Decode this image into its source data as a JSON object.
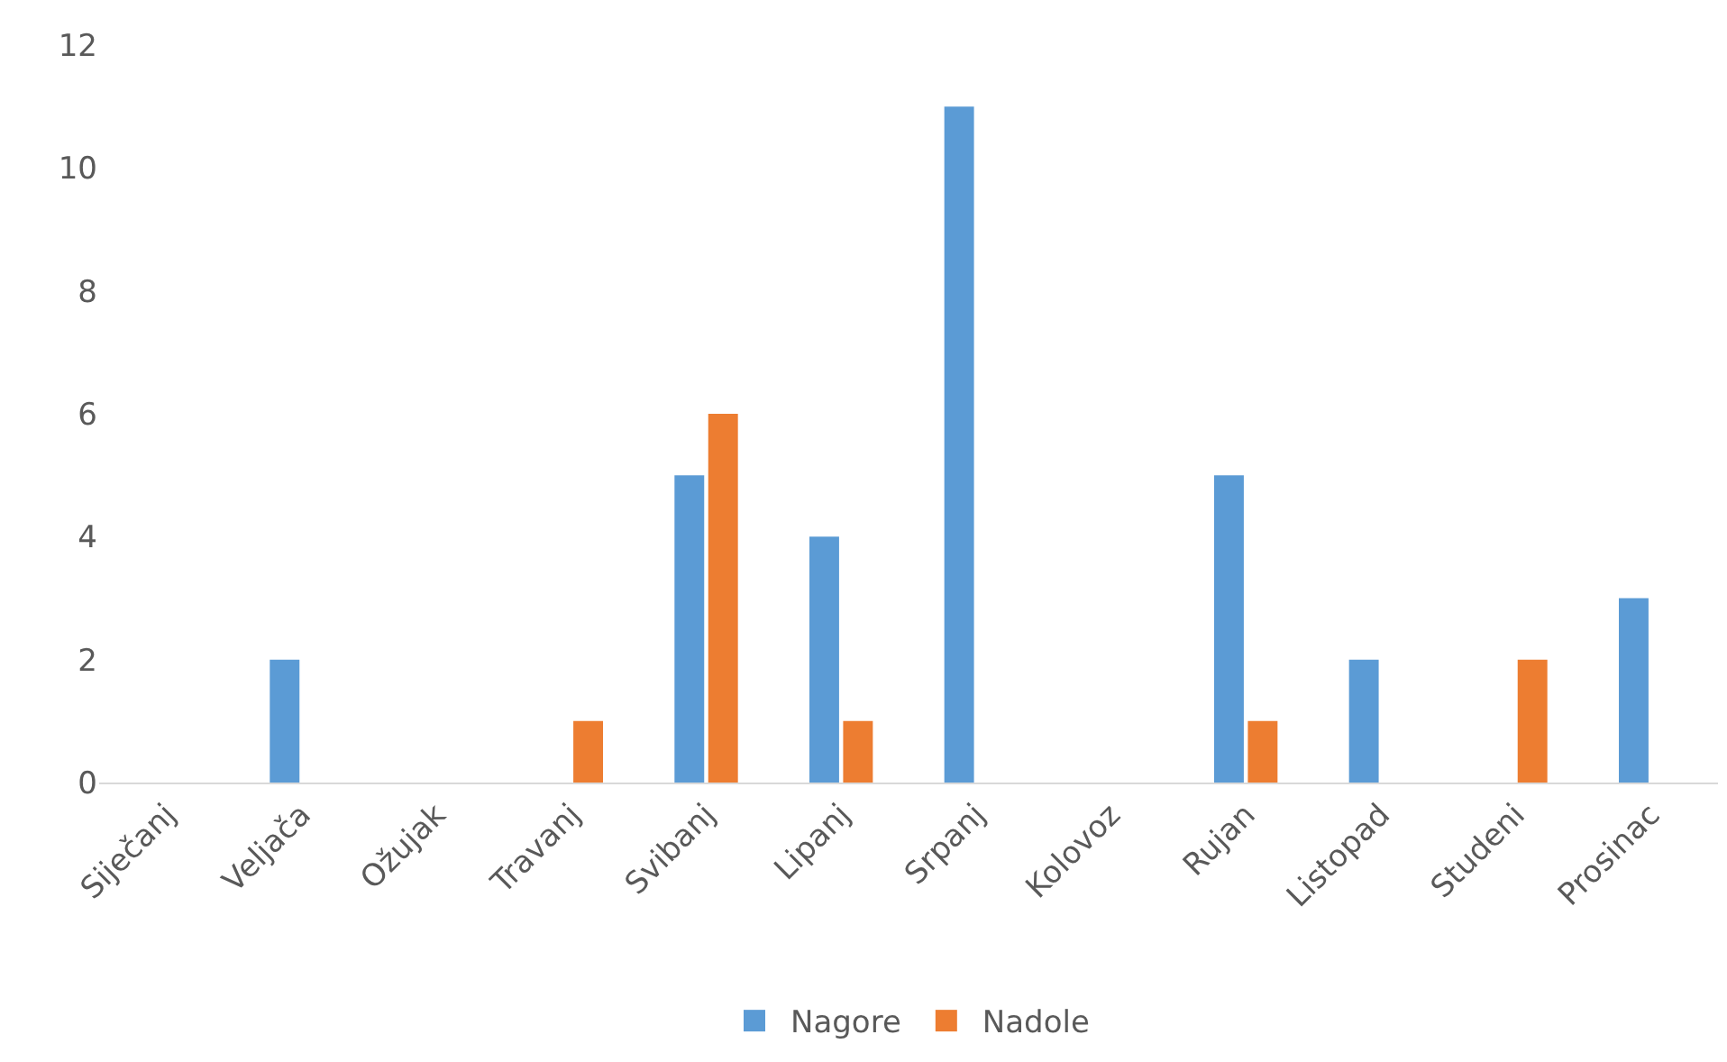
{
  "chart_data": {
    "type": "bar",
    "categories": [
      "Siječanj",
      "Veljača",
      "Ožujak",
      "Travanj",
      "Svibanj",
      "Lipanj",
      "Srpanj",
      "Kolovoz",
      "Rujan",
      "Listopad",
      "Studeni",
      "Prosinac"
    ],
    "series": [
      {
        "name": "Nagore",
        "color": "#5b9bd5",
        "values": [
          0,
          2,
          0,
          0,
          5,
          4,
          11,
          0,
          5,
          2,
          0,
          3
        ]
      },
      {
        "name": "Nadole",
        "color": "#ed7d31",
        "values": [
          0,
          0,
          0,
          1,
          6,
          1,
          0,
          0,
          1,
          0,
          2,
          0
        ]
      }
    ],
    "ylim": [
      0,
      12
    ],
    "yticks": [
      0,
      2,
      4,
      6,
      8,
      10,
      12
    ],
    "grid": false,
    "legend": "bottom"
  }
}
